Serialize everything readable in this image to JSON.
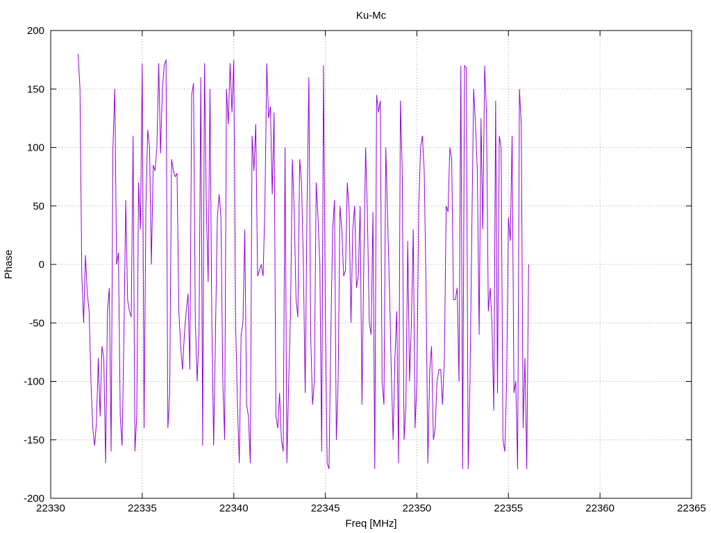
{
  "chart_data": {
    "type": "line",
    "title": "Ku-Mc",
    "xlabel": "Freq [MHz]",
    "ylabel": "Phase",
    "xlim": [
      22330,
      22365
    ],
    "ylim": [
      -200,
      200
    ],
    "xticks": [
      22330,
      22335,
      22340,
      22345,
      22350,
      22355,
      22360,
      22365
    ],
    "yticks": [
      -200,
      -150,
      -100,
      -50,
      0,
      50,
      100,
      150,
      200
    ],
    "grid": true,
    "legend": "none",
    "colors": {
      "series": "#9400d3",
      "grid": "#a0a0a0",
      "axis": "#000000"
    },
    "series": [
      {
        "x_start": 22331.5,
        "x_step": 0.1,
        "values": [
          180,
          150,
          -10,
          -50,
          8,
          -25,
          -40,
          -100,
          -140,
          -155,
          -135,
          -80,
          -130,
          -70,
          -80,
          -170,
          -40,
          -20,
          -160,
          100,
          150,
          0,
          10,
          -130,
          -155,
          -60,
          55,
          -30,
          -40,
          -45,
          110,
          -160,
          -130,
          70,
          30,
          172,
          -140,
          50,
          115,
          100,
          0,
          85,
          80,
          100,
          172,
          95,
          150,
          170,
          175,
          -140,
          -110,
          90,
          80,
          75,
          78,
          -40,
          -70,
          -90,
          -60,
          -40,
          -25,
          -90,
          145,
          155,
          -50,
          -100,
          -60,
          160,
          -155,
          172,
          50,
          -15,
          150,
          -50,
          -155,
          -60,
          40,
          60,
          40,
          -100,
          -150,
          150,
          120,
          172,
          130,
          175,
          -50,
          -120,
          -170,
          -60,
          -50,
          30,
          -120,
          -130,
          -170,
          110,
          80,
          120,
          -10,
          -5,
          0,
          -10,
          50,
          172,
          125,
          135,
          60,
          130,
          -130,
          -140,
          -110,
          -150,
          -160,
          100,
          -170,
          -100,
          -40,
          90,
          45,
          -30,
          -45,
          90,
          70,
          0,
          -110,
          50,
          160,
          -60,
          -120,
          -100,
          70,
          40,
          0,
          -160,
          170,
          -40,
          -170,
          -175,
          -60,
          30,
          55,
          -150,
          -100,
          50,
          30,
          -10,
          -5,
          70,
          45,
          -50,
          30,
          50,
          -20,
          -10,
          50,
          -120,
          0,
          100,
          40,
          -50,
          -60,
          45,
          -175,
          145,
          130,
          140,
          -100,
          -120,
          100,
          40,
          -20,
          -90,
          -150,
          -80,
          -40,
          -170,
          140,
          80,
          -150,
          -120,
          20,
          -100,
          -50,
          30,
          -140,
          -100,
          50,
          100,
          110,
          80,
          -20,
          -170,
          -90,
          -70,
          -150,
          -140,
          -100,
          -90,
          -90,
          -120,
          -80,
          50,
          45,
          100,
          90,
          -30,
          -30,
          -20,
          -100,
          170,
          -175,
          170,
          168,
          -175,
          -100,
          30,
          150,
          120,
          80,
          -60,
          125,
          30,
          170,
          130,
          -40,
          -20,
          -50,
          -125,
          140,
          -110,
          110,
          100,
          -150,
          -160,
          -100,
          40,
          20,
          110,
          -110,
          -100,
          -175,
          150,
          120,
          -140,
          -80,
          -175,
          0
        ]
      }
    ]
  }
}
